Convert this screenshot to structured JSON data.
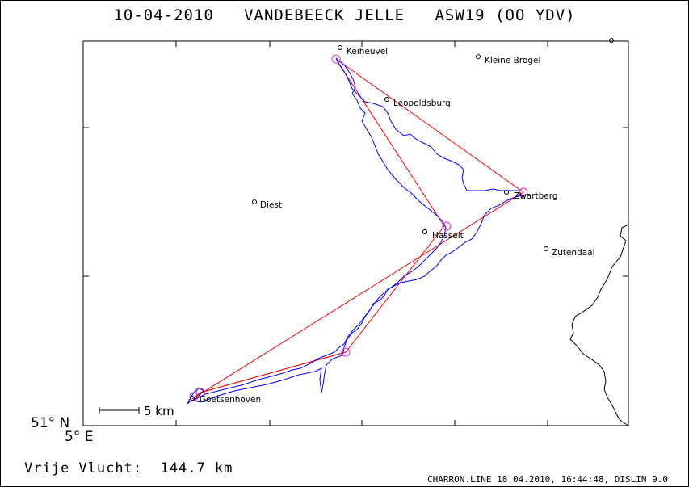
{
  "title": "10-04-2010   VANDEBEECK JELLE   ASW19 (OO YDV)",
  "axes": {
    "lat_label": "51° N",
    "lon_label": "5° E"
  },
  "scale_bar": {
    "label": "5 km"
  },
  "distance_text": "Vrije Vlucht:  144.7 km",
  "footer": "CHARRON.LINE 18.04.2010, 16:44:48, DISLIN 9.0",
  "places": [
    {
      "name": "Keiheuvel",
      "id": "keiheuvel"
    },
    {
      "name": "Kleine Brogel",
      "id": "kleine-brogel"
    },
    {
      "name": "Leopoldsburg",
      "id": "leopoldsburg"
    },
    {
      "name": "Diest",
      "id": "diest"
    },
    {
      "name": "Zwartberg",
      "id": "zwartberg"
    },
    {
      "name": "Hasselt",
      "id": "hasselt"
    },
    {
      "name": "Zutendaal",
      "id": "zutendaal"
    },
    {
      "name": "Goetsenhoven",
      "id": "goetsenhoven"
    }
  ],
  "turnpoints": [
    {
      "id": "start-finish"
    },
    {
      "id": "keiheuvel"
    },
    {
      "id": "hasselt"
    },
    {
      "id": "zwartberg"
    },
    {
      "id": "southeast-tp"
    }
  ],
  "colors": {
    "track": "#0000ff",
    "task": "#ff0000",
    "turnpoint": "#cc33cc",
    "border": "#000000"
  }
}
